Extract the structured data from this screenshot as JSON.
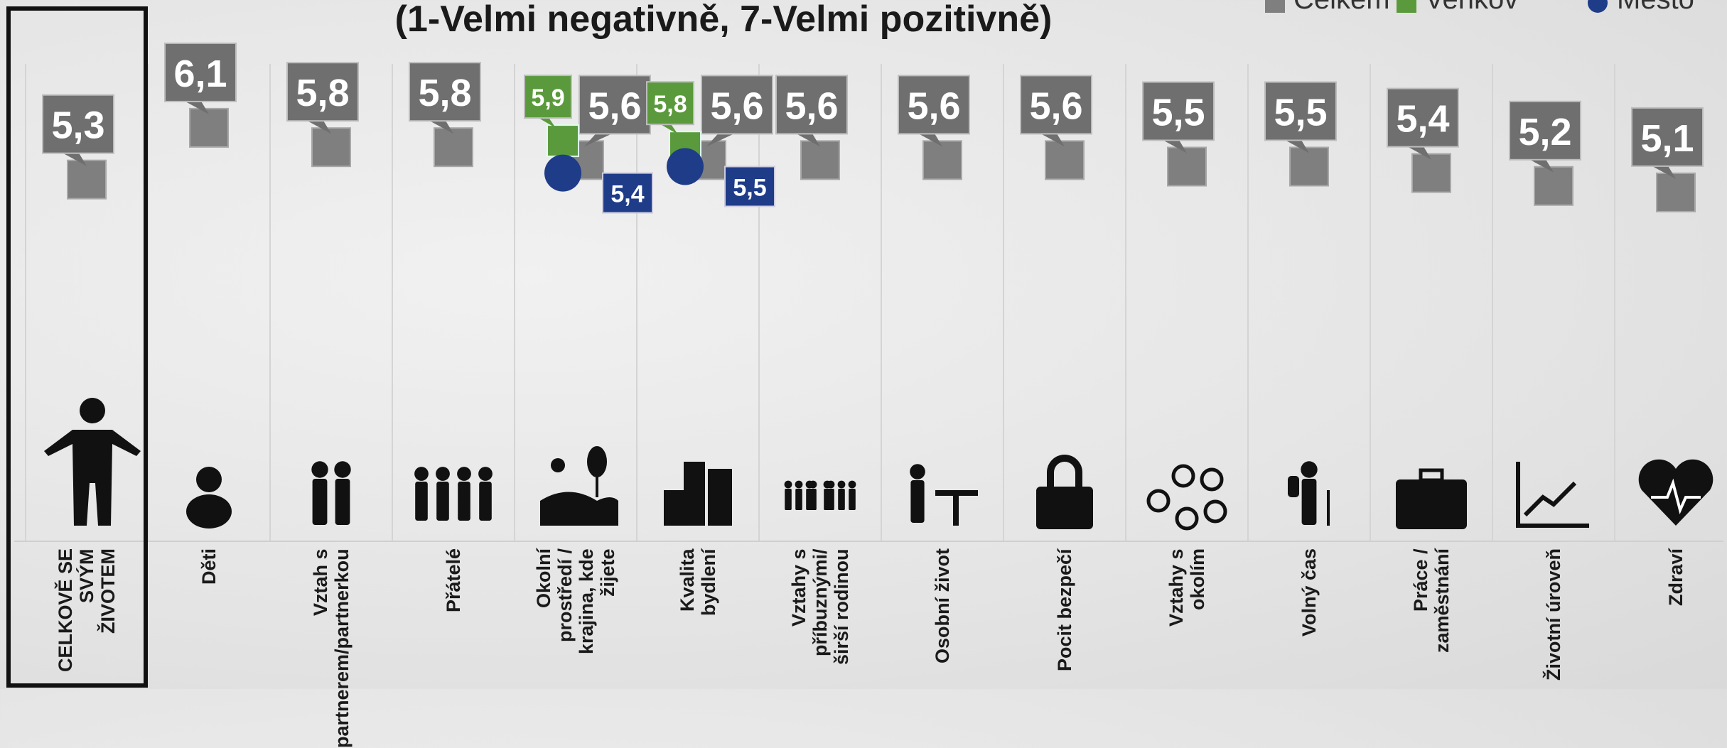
{
  "chart_data": {
    "type": "dot",
    "title": "(1-Velmi negativně, 7-Velmi pozitivně)",
    "categories": [
      "CELKOVĚ SE SVÝM ŽIVOTEM",
      "Děti",
      "Vztah s partnerem/partnerkou",
      "Přátelé",
      "Okolní prostředí / krajina, kde žijete",
      "Kvalita bydlení",
      "Vztahy s příbuznými/širší rodinou",
      "Osobní život",
      "Pocit bezpečí",
      "Vztahy s okolím",
      "Volný čas",
      "Práce / zaměstnání",
      "Životní úroveň",
      "Zdraví"
    ],
    "series": [
      {
        "name": "Celkem",
        "color": "#7f7f7f",
        "values": [
          5.3,
          6.1,
          5.8,
          5.8,
          5.6,
          5.6,
          5.6,
          5.6,
          5.6,
          5.5,
          5.5,
          5.4,
          5.2,
          5.1
        ],
        "value_labels": [
          "5,3",
          "6,1",
          "5,8",
          "5,8",
          "5,6",
          "5,6",
          "5,6",
          "5,6",
          "5,6",
          "5,5",
          "5,5",
          "5,4",
          "5,2",
          "5,1"
        ]
      },
      {
        "name": "Venkov",
        "color": "#5b9a3c",
        "values": [
          null,
          null,
          null,
          null,
          5.9,
          5.8,
          null,
          null,
          null,
          null,
          null,
          null,
          null,
          null
        ],
        "value_labels": [
          null,
          null,
          null,
          null,
          "5,9",
          "5,8",
          null,
          null,
          null,
          null,
          null,
          null,
          null,
          null
        ]
      },
      {
        "name": "Město",
        "color": "#1f3c88",
        "values": [
          null,
          null,
          null,
          null,
          5.4,
          5.5,
          null,
          null,
          null,
          null,
          null,
          null,
          null,
          null
        ],
        "value_labels": [
          null,
          null,
          null,
          null,
          "5,4",
          "5,5",
          null,
          null,
          null,
          null,
          null,
          null,
          null,
          null
        ]
      }
    ],
    "ylim": [
      1,
      7
    ]
  }
}
